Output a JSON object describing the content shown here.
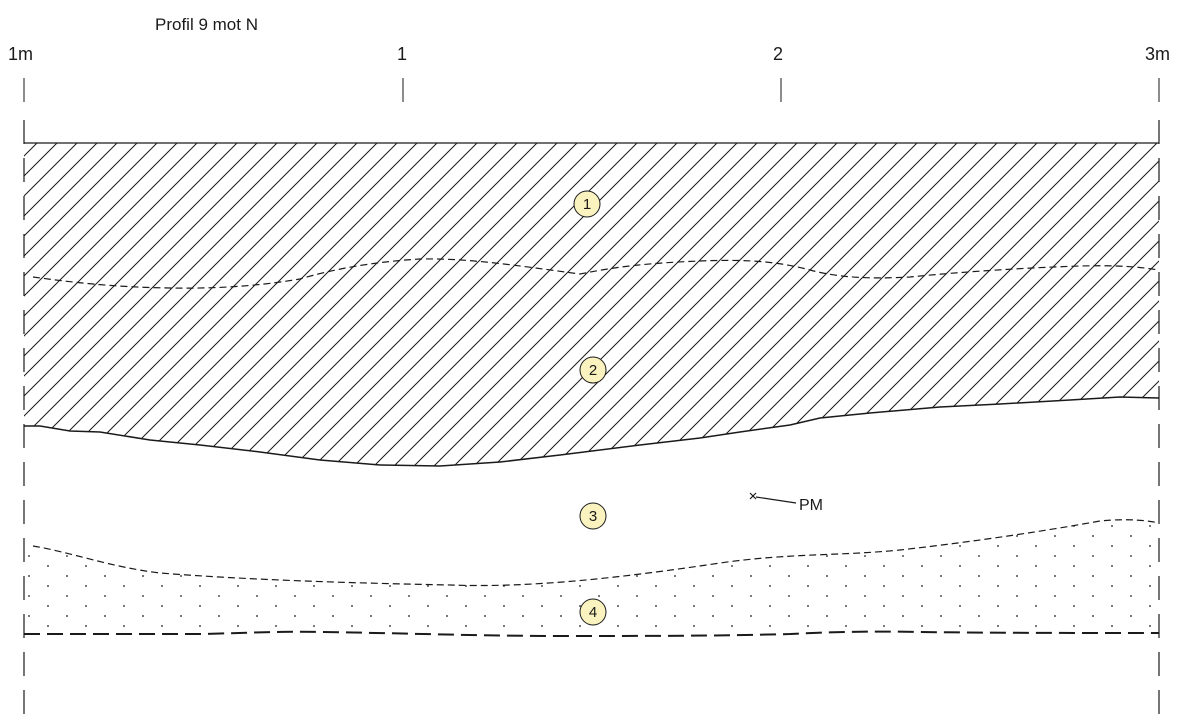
{
  "title": "Profil 9 mot N",
  "scale_labels": [
    "1m",
    "1",
    "2",
    "3m"
  ],
  "layers": [
    {
      "id": "layer-1",
      "label": "1"
    },
    {
      "id": "layer-2",
      "label": "2"
    },
    {
      "id": "layer-3",
      "label": "3"
    },
    {
      "id": "layer-4",
      "label": "4"
    }
  ],
  "marker": {
    "label": "PM"
  },
  "colors": {
    "line": "#1a1a1a",
    "badge_fill": "#fbf3bf",
    "badge_stroke": "#1a1a1a",
    "background": "#ffffff"
  }
}
